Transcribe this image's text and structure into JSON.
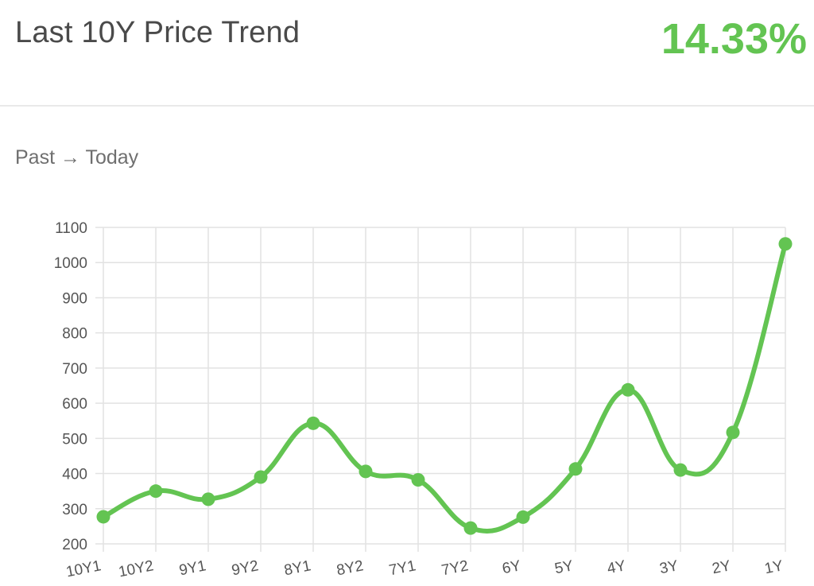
{
  "header": {
    "title": "Last 10Y Price Trend",
    "change_percent": "14.33%"
  },
  "subtitle": "Past → Today",
  "colors": {
    "accent": "#63c452",
    "grid": "#e2e2e2",
    "axis_text": "#555555"
  },
  "chart_data": {
    "type": "line",
    "categories": [
      "10Y1",
      "10Y2",
      "9Y1",
      "9Y2",
      "8Y1",
      "8Y2",
      "7Y1",
      "7Y2",
      "6Y",
      "5Y",
      "4Y",
      "3Y",
      "2Y",
      "1Y"
    ],
    "series": [
      {
        "values": [
          277,
          350,
          327,
          390,
          543,
          406,
          382,
          245,
          276,
          413,
          638,
          410,
          517,
          1053
        ]
      }
    ],
    "ylim": [
      200,
      1100
    ],
    "yticks": [
      200,
      300,
      400,
      500,
      600,
      700,
      800,
      900,
      1000,
      1100
    ],
    "grid": true,
    "smooth": true,
    "xlabel": "",
    "ylabel": ""
  }
}
